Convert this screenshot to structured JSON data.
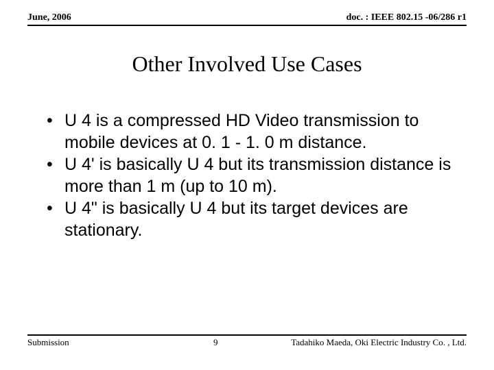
{
  "header": {
    "date": "June, 2006",
    "docref": "doc. : IEEE 802.15 -06/286 r1"
  },
  "title": "Other Involved Use Cases",
  "bullets": [
    "U 4 is a compressed HD Video transmission to mobile devices at 0. 1 - 1. 0 m distance.",
    "U 4' is basically U 4 but its transmission distance is more than 1 m (up to 10 m).",
    "U 4\" is basically U 4 but its target devices are stationary."
  ],
  "footer": {
    "left": "Submission",
    "page": "9",
    "right": "Tadahiko Maeda, Oki Electric Industry Co. , Ltd."
  }
}
